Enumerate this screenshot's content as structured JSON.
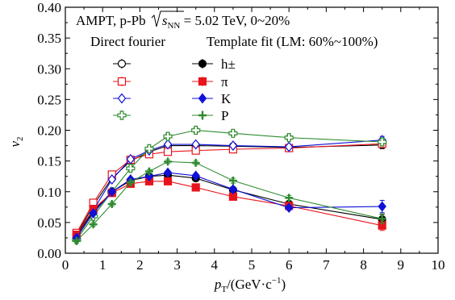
{
  "chart_data": {
    "type": "scatter",
    "title": "AMPT, p-Pb √s_NN = 5.02 TeV, 0~20%",
    "title_parts": {
      "prefix": "AMPT, p-Pb ",
      "sqrt_s": "s",
      "sqrt_sub": "NN",
      "suffix": " = 5.02 TeV, 0~20%"
    },
    "xlabel": "p_T/(GeV·c^-1)",
    "xlabel_parts": {
      "p": "p",
      "T": "T",
      "mid": "/(GeV·c",
      "exp": "−1",
      "close": ")"
    },
    "ylabel": "v2",
    "ylabel_parts": {
      "v": "v",
      "sub": "2"
    },
    "xlim": [
      0,
      10
    ],
    "ylim": [
      0,
      0.4
    ],
    "xticks": [
      "0",
      "1",
      "2",
      "3",
      "4",
      "5",
      "6",
      "7",
      "8",
      "9",
      "10"
    ],
    "yticks": [
      "0.00",
      "0.05",
      "0.10",
      "0.15",
      "0.20",
      "0.25",
      "0.30",
      "0.35",
      "0.40"
    ],
    "grid": false,
    "legend": {
      "placement": "top-left",
      "header_direct": "Direct fourier",
      "header_template": "Template fit (LM: 60%~100%)",
      "labels": [
        "h±",
        "π",
        "K",
        "P"
      ]
    },
    "x": [
      0.3,
      0.75,
      1.25,
      1.75,
      2.25,
      2.75,
      3.5,
      4.5,
      6.0,
      8.5
    ],
    "series": [
      {
        "name": "h±",
        "method": "direct",
        "color": "#000000",
        "marker": "circle",
        "filled": false,
        "values": [
          0.03,
          0.078,
          0.122,
          0.15,
          0.165,
          0.175,
          0.175,
          0.174,
          0.172,
          0.176
        ],
        "errors": [
          0.002,
          0.003,
          0.003,
          0.003,
          0.003,
          0.003,
          0.003,
          0.003,
          0.003,
          0.006
        ]
      },
      {
        "name": "π",
        "method": "direct",
        "color": "#e8141c",
        "marker": "square",
        "filled": false,
        "values": [
          0.033,
          0.082,
          0.128,
          0.152,
          0.161,
          0.165,
          0.167,
          0.169,
          0.171,
          0.178
        ],
        "errors": [
          0.002,
          0.003,
          0.003,
          0.003,
          0.003,
          0.003,
          0.003,
          0.003,
          0.003,
          0.006
        ]
      },
      {
        "name": "K",
        "method": "direct",
        "color": "#1010d8",
        "marker": "diamond",
        "filled": false,
        "values": [
          0.028,
          0.07,
          0.12,
          0.153,
          0.167,
          0.177,
          0.177,
          0.175,
          0.173,
          0.184
        ],
        "errors": [
          0.002,
          0.003,
          0.003,
          0.003,
          0.003,
          0.003,
          0.003,
          0.003,
          0.003,
          0.006
        ]
      },
      {
        "name": "P",
        "method": "direct",
        "color": "#2e8b2e",
        "marker": "plus",
        "filled": false,
        "values": [
          0.022,
          0.06,
          0.1,
          0.138,
          0.17,
          0.19,
          0.2,
          0.195,
          0.188,
          0.181
        ],
        "errors": [
          0.002,
          0.003,
          0.003,
          0.003,
          0.003,
          0.004,
          0.004,
          0.004,
          0.004,
          0.006
        ]
      },
      {
        "name": "h±",
        "method": "template",
        "color": "#000000",
        "marker": "circle",
        "filled": true,
        "values": [
          0.028,
          0.068,
          0.1,
          0.118,
          0.125,
          0.127,
          0.122,
          0.103,
          0.08,
          0.055
        ],
        "errors": [
          0.002,
          0.003,
          0.003,
          0.003,
          0.003,
          0.003,
          0.003,
          0.003,
          0.004,
          0.008
        ]
      },
      {
        "name": "π",
        "method": "template",
        "color": "#e8141c",
        "marker": "square",
        "filled": true,
        "values": [
          0.03,
          0.072,
          0.098,
          0.113,
          0.117,
          0.117,
          0.107,
          0.092,
          0.077,
          0.045
        ],
        "errors": [
          0.002,
          0.003,
          0.003,
          0.003,
          0.003,
          0.003,
          0.003,
          0.003,
          0.004,
          0.008
        ]
      },
      {
        "name": "K",
        "method": "template",
        "color": "#1010d8",
        "marker": "diamond",
        "filled": true,
        "values": [
          0.025,
          0.065,
          0.1,
          0.12,
          0.125,
          0.131,
          0.126,
          0.104,
          0.074,
          0.076
        ],
        "errors": [
          0.002,
          0.003,
          0.003,
          0.003,
          0.003,
          0.003,
          0.003,
          0.003,
          0.004,
          0.01
        ]
      },
      {
        "name": "P",
        "method": "template",
        "color": "#2e8b2e",
        "marker": "plus",
        "filled": true,
        "values": [
          0.02,
          0.047,
          0.08,
          0.115,
          0.133,
          0.149,
          0.147,
          0.118,
          0.09,
          0.056
        ],
        "errors": [
          0.002,
          0.003,
          0.003,
          0.003,
          0.003,
          0.003,
          0.003,
          0.004,
          0.004,
          0.008
        ]
      }
    ]
  }
}
